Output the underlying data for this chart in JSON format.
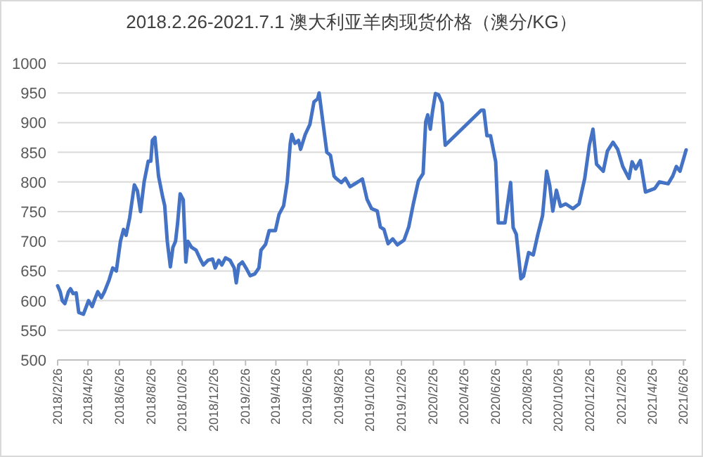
{
  "chart_data": {
    "type": "line",
    "title": "2018.2.26-2021.7.1 澳大利亚羊肉现货价格（澳分/KG）",
    "x": [
      "2018-02-26",
      "2018-03-03",
      "2018-03-07",
      "2018-03-12",
      "2018-03-19",
      "2018-03-23",
      "2018-03-28",
      "2018-04-03",
      "2018-04-08",
      "2018-04-17",
      "2018-04-27",
      "2018-05-04",
      "2018-05-09",
      "2018-05-15",
      "2018-05-22",
      "2018-05-28",
      "2018-06-06",
      "2018-06-13",
      "2018-06-20",
      "2018-06-28",
      "2018-07-04",
      "2018-07-09",
      "2018-07-16",
      "2018-07-25",
      "2018-07-31",
      "2018-08-06",
      "2018-08-13",
      "2018-08-21",
      "2018-08-26",
      "2018-08-29",
      "2018-09-03",
      "2018-09-10",
      "2018-09-18",
      "2018-09-22",
      "2018-09-27",
      "2018-10-03",
      "2018-10-08",
      "2018-10-13",
      "2018-10-17",
      "2018-10-22",
      "2018-10-28",
      "2018-11-02",
      "2018-11-06",
      "2018-11-13",
      "2018-11-22",
      "2018-11-30",
      "2018-12-06",
      "2018-12-15",
      "2018-12-24",
      "2018-12-29",
      "2019-01-05",
      "2019-01-11",
      "2019-01-18",
      "2019-01-27",
      "2019-02-04",
      "2019-02-08",
      "2019-02-13",
      "2019-02-20",
      "2019-02-27",
      "2019-03-07",
      "2019-03-16",
      "2019-03-24",
      "2019-03-28",
      "2019-04-06",
      "2019-04-13",
      "2019-04-25",
      "2019-05-02",
      "2019-05-11",
      "2019-05-18",
      "2019-05-24",
      "2019-05-27",
      "2019-06-02",
      "2019-06-09",
      "2019-06-13",
      "2019-06-22",
      "2019-07-01",
      "2019-07-09",
      "2019-07-16",
      "2019-07-19",
      "2019-07-25",
      "2019-08-03",
      "2019-08-10",
      "2019-08-17",
      "2019-08-21",
      "2019-08-31",
      "2019-09-08",
      "2019-09-17",
      "2019-10-06",
      "2019-10-11",
      "2019-10-20",
      "2019-10-29",
      "2019-11-09",
      "2019-11-15",
      "2019-11-22",
      "2019-11-30",
      "2019-12-09",
      "2019-12-18",
      "2019-12-31",
      "2020-01-09",
      "2020-01-18",
      "2020-01-28",
      "2020-02-06",
      "2020-02-11",
      "2020-02-15",
      "2020-02-20",
      "2020-02-24",
      "2020-03-01",
      "2020-03-07",
      "2020-03-14",
      "2020-03-20",
      "2020-05-29",
      "2020-06-03",
      "2020-06-09",
      "2020-06-16",
      "2020-06-26",
      "2020-07-01",
      "2020-07-14",
      "2020-07-25",
      "2020-07-30",
      "2020-08-05",
      "2020-08-14",
      "2020-08-19",
      "2020-08-29",
      "2020-09-07",
      "2020-09-16",
      "2020-09-25",
      "2020-10-03",
      "2020-10-09",
      "2020-10-15",
      "2020-10-22",
      "2020-10-30",
      "2020-11-09",
      "2020-11-23",
      "2020-12-05",
      "2020-12-16",
      "2020-12-25",
      "2021-01-01",
      "2021-01-08",
      "2021-01-21",
      "2021-01-29",
      "2021-02-09",
      "2021-02-18",
      "2021-02-28",
      "2021-03-12",
      "2021-03-18",
      "2021-03-25",
      "2021-04-03",
      "2021-04-13",
      "2021-05-01",
      "2021-05-10",
      "2021-05-27",
      "2021-06-05",
      "2021-06-12",
      "2021-06-19",
      "2021-07-01"
    ],
    "series": [
      {
        "color": "#4472c4",
        "values": [
          625,
          615,
          600,
          595,
          615,
          620,
          612,
          613,
          580,
          577,
          600,
          590,
          602,
          615,
          605,
          615,
          635,
          655,
          650,
          700,
          720,
          710,
          740,
          795,
          785,
          750,
          800,
          835,
          835,
          870,
          875,
          810,
          775,
          760,
          700,
          657,
          690,
          700,
          730,
          780,
          770,
          665,
          700,
          690,
          685,
          670,
          660,
          668,
          670,
          655,
          668,
          660,
          672,
          668,
          655,
          630,
          660,
          665,
          655,
          642,
          645,
          655,
          685,
          695,
          718,
          718,
          745,
          760,
          800,
          865,
          880,
          865,
          870,
          855,
          880,
          897,
          935,
          940,
          950,
          910,
          850,
          845,
          810,
          806,
          799,
          806,
          792,
          802,
          805,
          771,
          755,
          751,
          724,
          720,
          696,
          704,
          694,
          702,
          724,
          763,
          802,
          814,
          901,
          913,
          889,
          917,
          949,
          947,
          933,
          862,
          921,
          921,
          878,
          878,
          834,
          731,
          731,
          799,
          723,
          712,
          637,
          641,
          681,
          677,
          712,
          743,
          818,
          794,
          751,
          786,
          759,
          763,
          755,
          763,
          806,
          862,
          889,
          830,
          818,
          852,
          867,
          855,
          826,
          806,
          834,
          822,
          836,
          783,
          789,
          800,
          797,
          810,
          826,
          818,
          854
        ]
      }
    ],
    "xlim": [
      "2018-02-26",
      "2021-07-01"
    ],
    "xticks": [
      {
        "value": "2018-02-26",
        "label": "2018/2/26"
      },
      {
        "value": "2018-04-26",
        "label": "2018/4/26"
      },
      {
        "value": "2018-06-26",
        "label": "2018/6/26"
      },
      {
        "value": "2018-08-26",
        "label": "2018/8/26"
      },
      {
        "value": "2018-10-26",
        "label": "2018/10/26"
      },
      {
        "value": "2018-12-26",
        "label": "2018/12/26"
      },
      {
        "value": "2019-02-26",
        "label": "2019/2/26"
      },
      {
        "value": "2019-04-26",
        "label": "2019/4/26"
      },
      {
        "value": "2019-06-26",
        "label": "2019/6/26"
      },
      {
        "value": "2019-08-26",
        "label": "2019/8/26"
      },
      {
        "value": "2019-10-26",
        "label": "2019/10/26"
      },
      {
        "value": "2019-12-26",
        "label": "2019/12/26"
      },
      {
        "value": "2020-02-26",
        "label": "2020/2/26"
      },
      {
        "value": "2020-04-26",
        "label": "2020/4/26"
      },
      {
        "value": "2020-06-26",
        "label": "2020/6/26"
      },
      {
        "value": "2020-08-26",
        "label": "2020/8/26"
      },
      {
        "value": "2020-10-26",
        "label": "2020/10/26"
      },
      {
        "value": "2020-12-26",
        "label": "2020/12/26"
      },
      {
        "value": "2021-02-26",
        "label": "2021/2/26"
      },
      {
        "value": "2021-04-26",
        "label": "2021/4/26"
      },
      {
        "value": "2021-06-26",
        "label": "2021/6/26"
      }
    ],
    "ylim": [
      500,
      1000
    ],
    "yticks": [
      500,
      550,
      600,
      650,
      700,
      750,
      800,
      850,
      900,
      950,
      1000
    ],
    "grid": "y"
  }
}
